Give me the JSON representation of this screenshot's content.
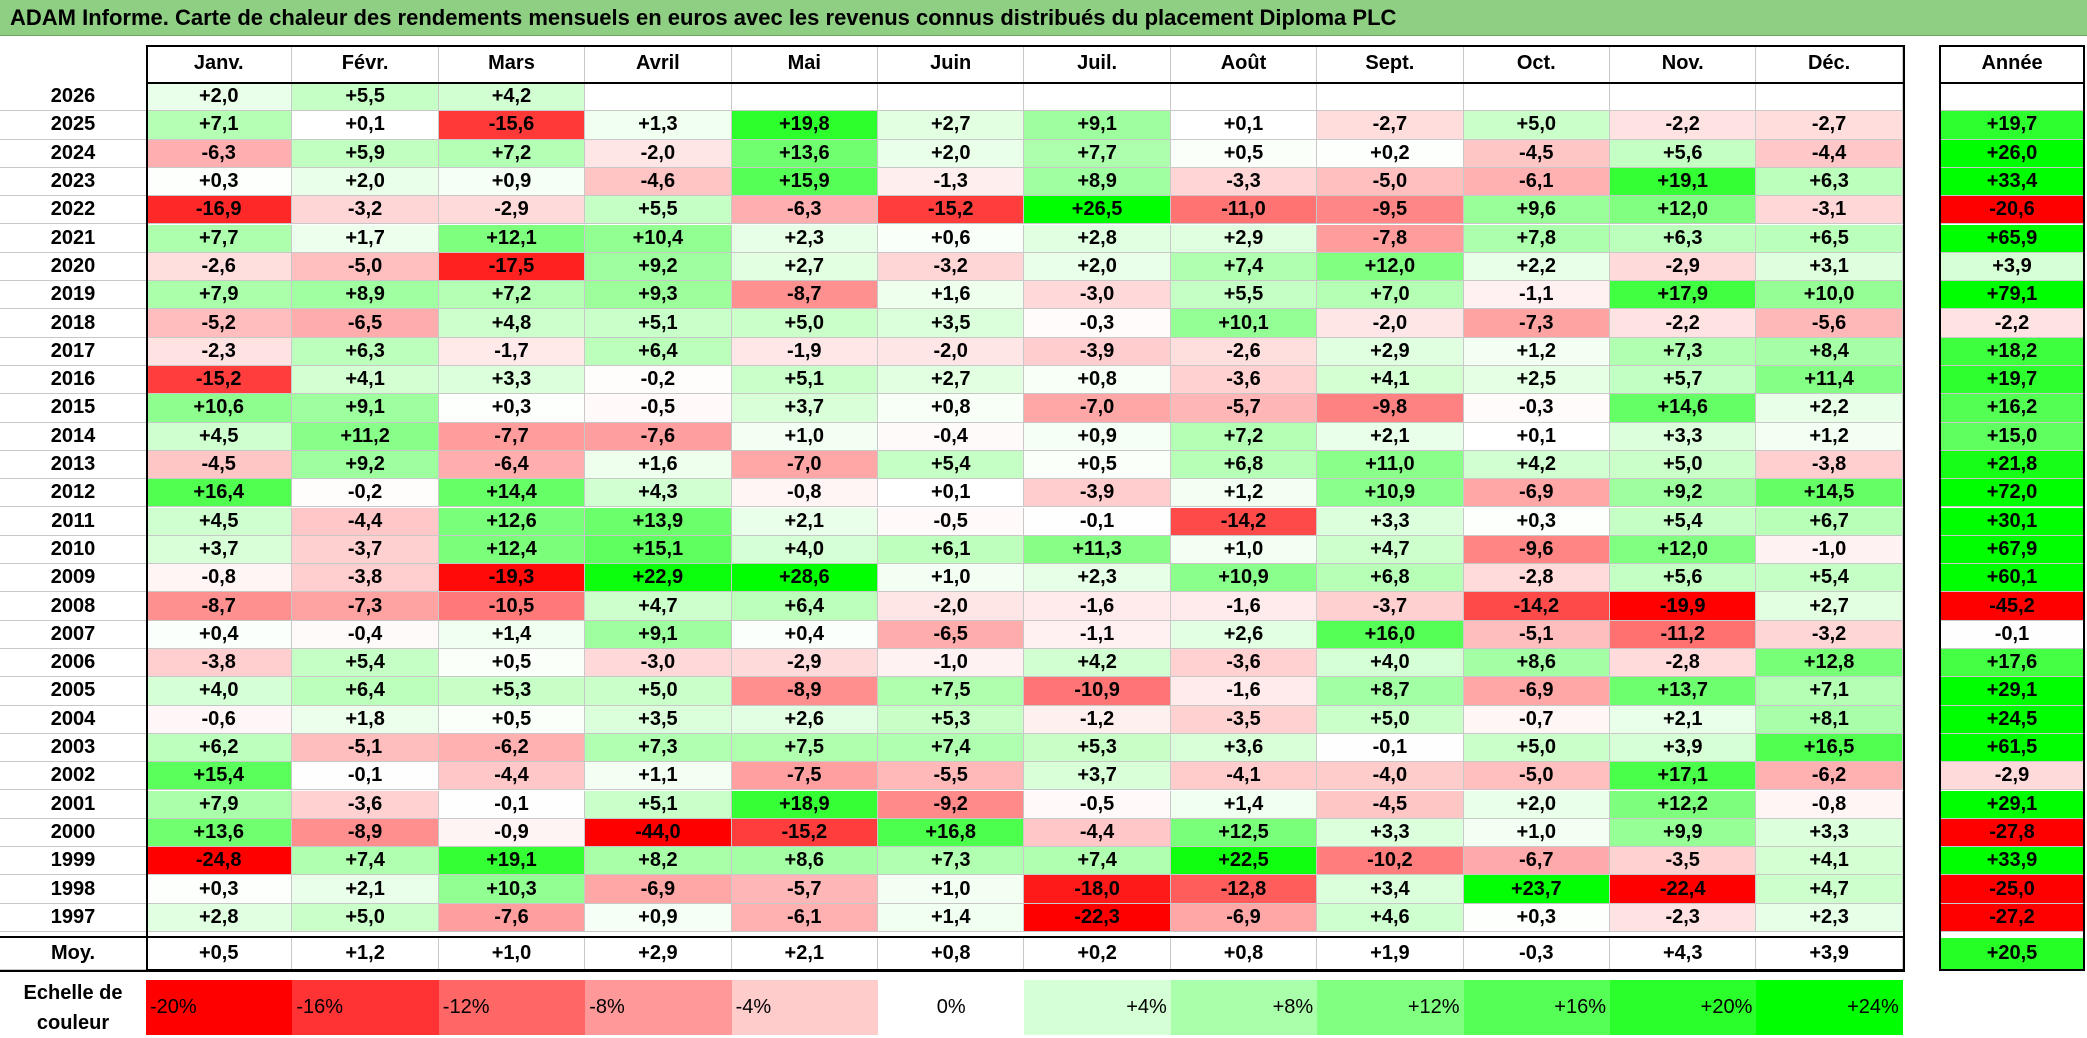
{
  "title": "ADAM Informe. Carte de chaleur des rendements mensuels en euros avec les revenus connus distribués du placement Diploma PLC",
  "chart_data": {
    "type": "heatmap",
    "title": "ADAM Informe. Carte de chaleur des rendements mensuels en euros avec les revenus connus distribués du placement Diploma PLC",
    "columns": [
      "Janv.",
      "Févr.",
      "Mars",
      "Avril",
      "Mai",
      "Juin",
      "Juil.",
      "Août",
      "Sept.",
      "Oct.",
      "Nov.",
      "Déc."
    ],
    "year_header": "Année",
    "rows": [
      {
        "label": "2026",
        "values": [
          2.0,
          5.5,
          4.2,
          null,
          null,
          null,
          null,
          null,
          null,
          null,
          null,
          null
        ],
        "annual": null
      },
      {
        "label": "2025",
        "values": [
          7.1,
          0.1,
          -15.6,
          1.3,
          19.8,
          2.7,
          9.1,
          0.1,
          -2.7,
          5.0,
          -2.2,
          -2.7
        ],
        "annual": 19.7
      },
      {
        "label": "2024",
        "values": [
          -6.3,
          5.9,
          7.2,
          -2.0,
          13.6,
          2.0,
          7.7,
          0.5,
          0.2,
          -4.5,
          5.6,
          -4.4
        ],
        "annual": 26.0
      },
      {
        "label": "2023",
        "values": [
          0.3,
          2.0,
          0.9,
          -4.6,
          15.9,
          -1.3,
          8.9,
          -3.3,
          -5.0,
          -6.1,
          19.1,
          6.3
        ],
        "annual": 33.4
      },
      {
        "label": "2022",
        "values": [
          -16.9,
          -3.2,
          -2.9,
          5.5,
          -6.3,
          -15.2,
          26.5,
          -11.0,
          -9.5,
          9.6,
          12.0,
          -3.1
        ],
        "annual": -20.6
      },
      {
        "label": "2021",
        "values": [
          7.7,
          1.7,
          12.1,
          10.4,
          2.3,
          0.6,
          2.8,
          2.9,
          -7.8,
          7.8,
          6.3,
          6.5
        ],
        "annual": 65.9
      },
      {
        "label": "2020",
        "values": [
          -2.6,
          -5.0,
          -17.5,
          9.2,
          2.7,
          -3.2,
          2.0,
          7.4,
          12.0,
          2.2,
          -2.9,
          3.1
        ],
        "annual": 3.9
      },
      {
        "label": "2019",
        "values": [
          7.9,
          8.9,
          7.2,
          9.3,
          -8.7,
          1.6,
          -3.0,
          5.5,
          7.0,
          -1.1,
          17.9,
          10.0
        ],
        "annual": 79.1
      },
      {
        "label": "2018",
        "values": [
          -5.2,
          -6.5,
          4.8,
          5.1,
          5.0,
          3.5,
          -0.3,
          10.1,
          -2.0,
          -7.3,
          -2.2,
          -5.6
        ],
        "annual": -2.2
      },
      {
        "label": "2017",
        "values": [
          -2.3,
          6.3,
          -1.7,
          6.4,
          -1.9,
          -2.0,
          -3.9,
          -2.6,
          2.9,
          1.2,
          7.3,
          8.4
        ],
        "annual": 18.2
      },
      {
        "label": "2016",
        "values": [
          -15.2,
          4.1,
          3.3,
          -0.2,
          5.1,
          2.7,
          0.8,
          -3.6,
          4.1,
          2.5,
          5.7,
          11.4
        ],
        "annual": 19.7
      },
      {
        "label": "2015",
        "values": [
          10.6,
          9.1,
          0.3,
          -0.5,
          3.7,
          0.8,
          -7.0,
          -5.7,
          -9.8,
          -0.3,
          14.6,
          2.2
        ],
        "annual": 16.2
      },
      {
        "label": "2014",
        "values": [
          4.5,
          11.2,
          -7.7,
          -7.6,
          1.0,
          -0.4,
          0.9,
          7.2,
          2.1,
          0.1,
          3.3,
          1.2
        ],
        "annual": 15.0
      },
      {
        "label": "2013",
        "values": [
          -4.5,
          9.2,
          -6.4,
          1.6,
          -7.0,
          5.4,
          0.5,
          6.8,
          11.0,
          4.2,
          5.0,
          -3.8
        ],
        "annual": 21.8
      },
      {
        "label": "2012",
        "values": [
          16.4,
          -0.2,
          14.4,
          4.3,
          -0.8,
          0.1,
          -3.9,
          1.2,
          10.9,
          -6.9,
          9.2,
          14.5
        ],
        "annual": 72.0
      },
      {
        "label": "2011",
        "values": [
          4.5,
          -4.4,
          12.6,
          13.9,
          2.1,
          -0.5,
          -0.1,
          -14.2,
          3.3,
          0.3,
          5.4,
          6.7
        ],
        "annual": 30.1
      },
      {
        "label": "2010",
        "values": [
          3.7,
          -3.7,
          12.4,
          15.1,
          4.0,
          6.1,
          11.3,
          1.0,
          4.7,
          -9.6,
          12.0,
          -1.0
        ],
        "annual": 67.9
      },
      {
        "label": "2009",
        "values": [
          -0.8,
          -3.8,
          -19.3,
          22.9,
          28.6,
          1.0,
          2.3,
          10.9,
          6.8,
          -2.8,
          5.6,
          5.4
        ],
        "annual": 60.1
      },
      {
        "label": "2008",
        "values": [
          -8.7,
          -7.3,
          -10.5,
          4.7,
          6.4,
          -2.0,
          -1.6,
          -1.6,
          -3.7,
          -14.2,
          -19.9,
          2.7
        ],
        "annual": -45.2
      },
      {
        "label": "2007",
        "values": [
          0.4,
          -0.4,
          1.4,
          9.1,
          0.4,
          -6.5,
          -1.1,
          2.6,
          16.0,
          -5.1,
          -11.2,
          -3.2
        ],
        "annual": -0.1
      },
      {
        "label": "2006",
        "values": [
          -3.8,
          5.4,
          0.5,
          -3.0,
          -2.9,
          -1.0,
          4.2,
          -3.6,
          4.0,
          8.6,
          -2.8,
          12.8
        ],
        "annual": 17.6
      },
      {
        "label": "2005",
        "values": [
          4.0,
          6.4,
          5.3,
          5.0,
          -8.9,
          7.5,
          -10.9,
          -1.6,
          8.7,
          -6.9,
          13.7,
          7.1
        ],
        "annual": 29.1
      },
      {
        "label": "2004",
        "values": [
          -0.6,
          1.8,
          0.5,
          3.5,
          2.6,
          5.3,
          -1.2,
          -3.5,
          5.0,
          -0.7,
          2.1,
          8.1
        ],
        "annual": 24.5
      },
      {
        "label": "2003",
        "values": [
          6.2,
          -5.1,
          -6.2,
          7.3,
          7.5,
          7.4,
          5.3,
          3.6,
          -0.1,
          5.0,
          3.9,
          16.5
        ],
        "annual": 61.5
      },
      {
        "label": "2002",
        "values": [
          15.4,
          -0.1,
          -4.4,
          1.1,
          -7.5,
          -5.5,
          3.7,
          -4.1,
          -4.0,
          -5.0,
          17.1,
          -6.2
        ],
        "annual": -2.9
      },
      {
        "label": "2001",
        "values": [
          7.9,
          -3.6,
          -0.1,
          5.1,
          18.9,
          -9.2,
          -0.5,
          1.4,
          -4.5,
          2.0,
          12.2,
          -0.8
        ],
        "annual": 29.1
      },
      {
        "label": "2000",
        "values": [
          13.6,
          -8.9,
          -0.9,
          -44.0,
          -15.2,
          16.8,
          -4.4,
          12.5,
          3.3,
          1.0,
          9.9,
          3.3
        ],
        "annual": -27.8
      },
      {
        "label": "1999",
        "values": [
          -24.8,
          7.4,
          19.1,
          8.2,
          8.6,
          7.3,
          7.4,
          22.5,
          -10.2,
          -6.7,
          -3.5,
          4.1
        ],
        "annual": 33.9
      },
      {
        "label": "1998",
        "values": [
          0.3,
          2.1,
          10.3,
          -6.9,
          -5.7,
          1.0,
          -18.0,
          -12.8,
          3.4,
          23.7,
          -22.4,
          4.7
        ],
        "annual": -25.0
      },
      {
        "label": "1997",
        "values": [
          2.8,
          5.0,
          -7.6,
          0.9,
          -6.1,
          1.4,
          -22.3,
          -6.9,
          4.6,
          0.3,
          -2.3,
          2.3
        ],
        "annual": -27.2
      }
    ],
    "average": {
      "label": "Moy.",
      "values": [
        0.5,
        1.2,
        1.0,
        2.9,
        2.1,
        0.8,
        0.2,
        0.8,
        1.9,
        -0.3,
        4.3,
        3.9
      ],
      "annual": 20.5
    },
    "color_scale": {
      "label": "Echelle de couleur",
      "stops": [
        "-20%",
        "-16%",
        "-12%",
        "-8%",
        "-4%",
        "0%",
        "+4%",
        "+8%",
        "+12%",
        "+16%",
        "+20%",
        "+24%"
      ],
      "stop_values": [
        -20,
        -16,
        -12,
        -8,
        -4,
        0,
        4,
        8,
        12,
        16,
        20,
        24
      ],
      "negative_color": "#ff0000",
      "zero_color": "#ffffff",
      "positive_color": "#00ff00"
    }
  }
}
